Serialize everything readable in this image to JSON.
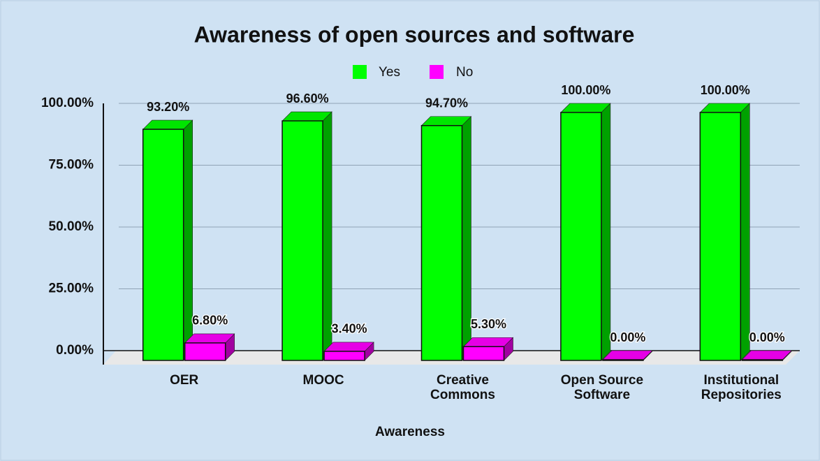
{
  "chart_data": {
    "type": "bar3d",
    "title": "Awareness of open sources and software",
    "categories": [
      "OER",
      "MOOC",
      "Creative Commons",
      "Open Source Software",
      "Institutional Repositories"
    ],
    "series": [
      {
        "name": "Yes",
        "color": "#00ff00",
        "values": [
          93.2,
          96.6,
          94.7,
          100,
          100
        ],
        "value_labels": [
          "93.20%",
          "96.60%",
          "94.70%",
          "100.00%",
          "100.00%"
        ]
      },
      {
        "name": "No",
        "color": "#ff00ff",
        "values": [
          6.8,
          3.4,
          5.3,
          0,
          0
        ],
        "value_labels": [
          "6.80%",
          "3.40%",
          "5.30%",
          "0.00%",
          "0.00%"
        ]
      }
    ],
    "xlabel": "Awareness",
    "ylim": [
      0,
      100
    ],
    "yticks": [
      {
        "value": 0,
        "label": "0.00%"
      },
      {
        "value": 25,
        "label": "25.00%"
      },
      {
        "value": 50,
        "label": "50.00%"
      },
      {
        "value": 75,
        "label": "75.00%"
      },
      {
        "value": 100,
        "label": "100.00%"
      }
    ],
    "grid": true,
    "legend": "top"
  }
}
